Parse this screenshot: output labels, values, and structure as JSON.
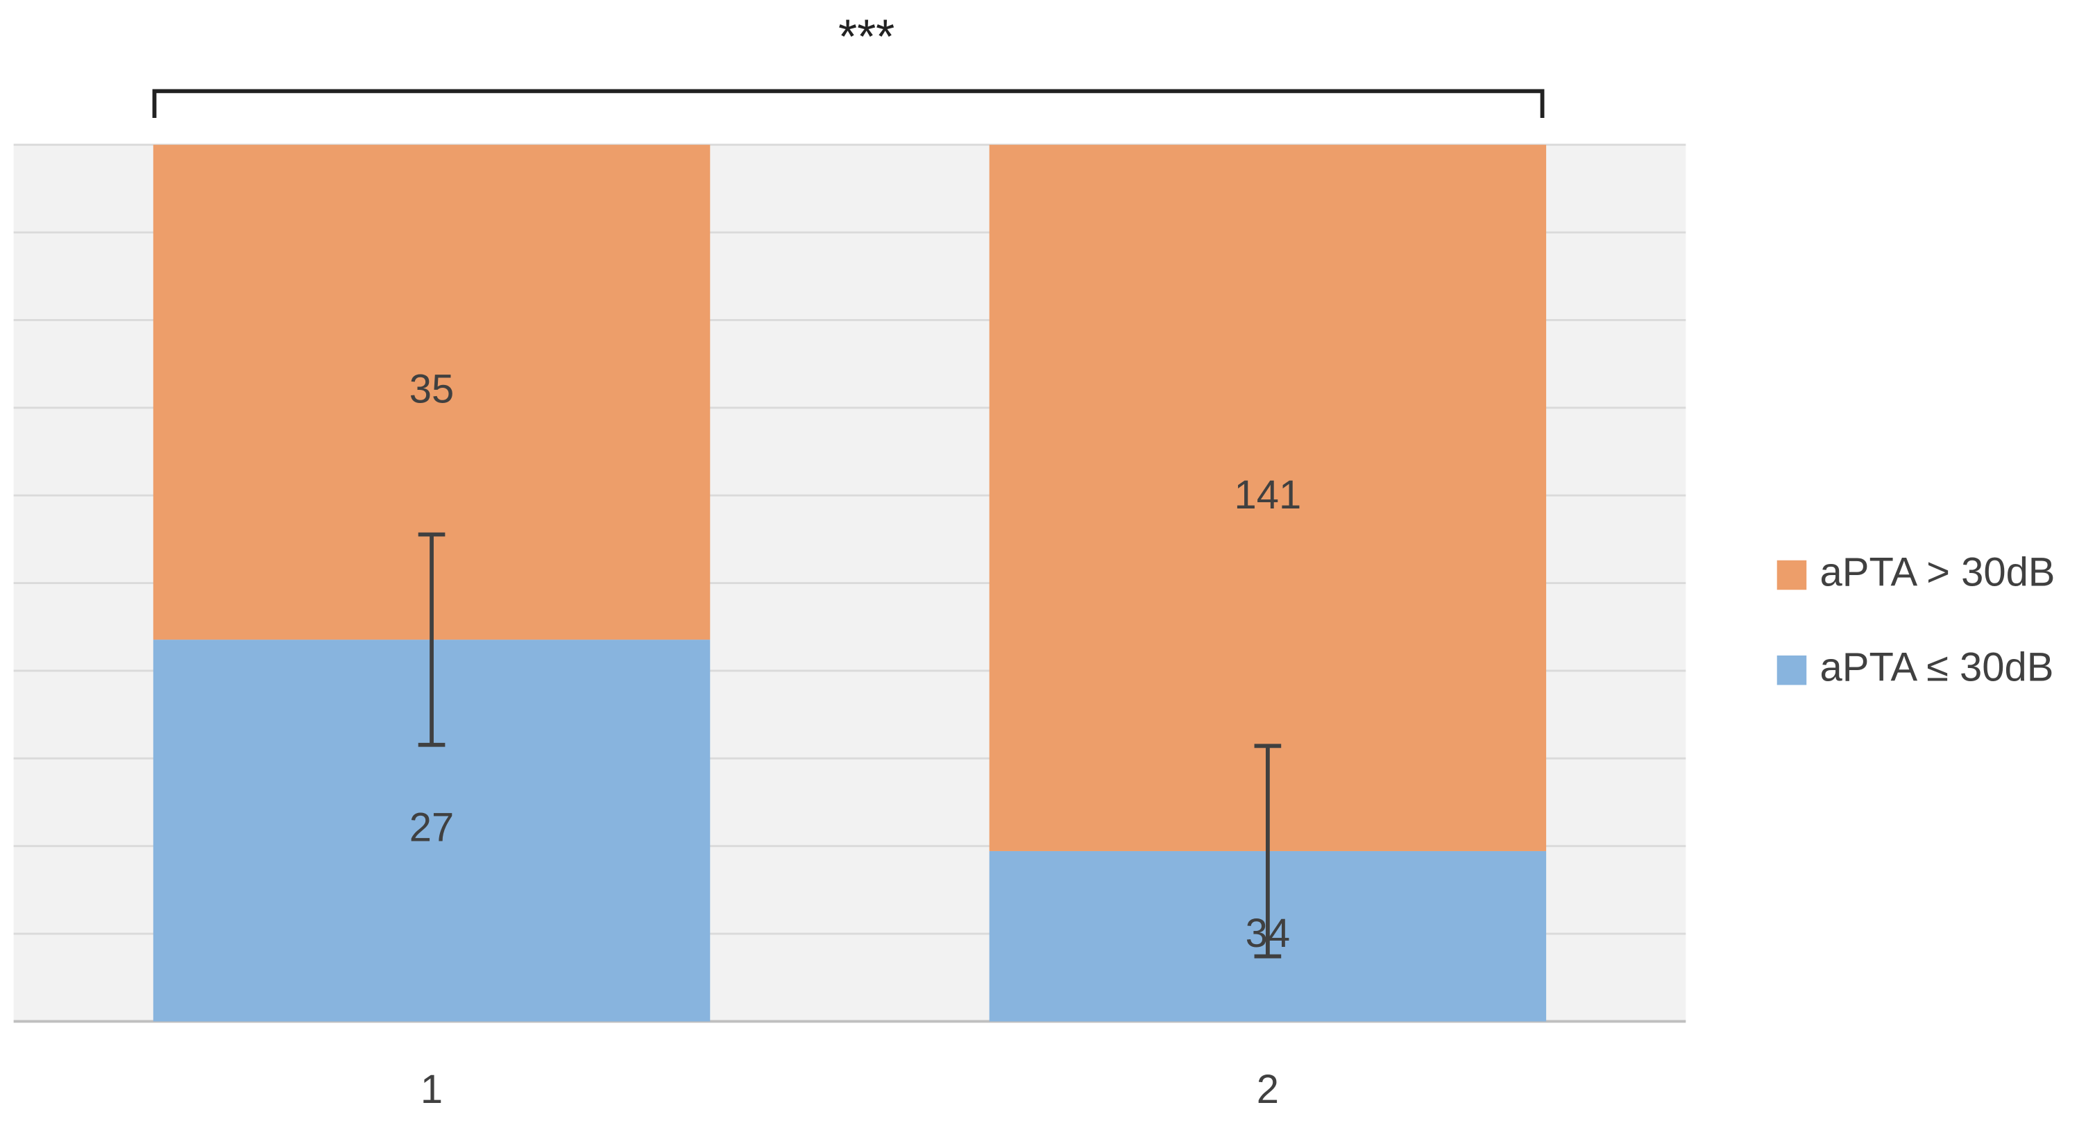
{
  "chart_data": {
    "type": "bar",
    "stacking": "percent",
    "categories": [
      "1",
      "2"
    ],
    "series": [
      {
        "name": "aPTA ≤ 30dB",
        "color": "#88b4de",
        "values": [
          27,
          34
        ],
        "errors": [
          12,
          12
        ]
      },
      {
        "name": "aPTA > 30dB",
        "color": "#ed9e6a",
        "values": [
          35,
          141
        ]
      }
    ],
    "ylim": [
      0,
      100
    ],
    "yticks": [
      0,
      10,
      20,
      30,
      40,
      50,
      60,
      70,
      80,
      90,
      100
    ],
    "show_ytick_labels": false,
    "grid": true,
    "legend": "right",
    "annotation": "***"
  }
}
